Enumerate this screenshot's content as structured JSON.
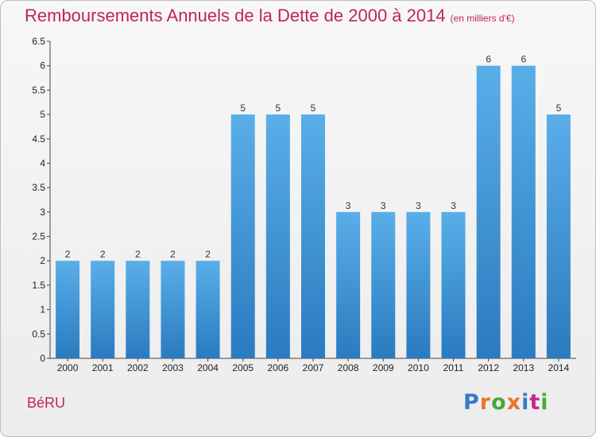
{
  "header": {
    "title": "Remboursements Annuels de la Dette de 2000 à 2014",
    "unit": "(en milliers d'€)"
  },
  "footer": {
    "commune": "BéRU",
    "logo_text": "Proxiti"
  },
  "colors": {
    "title": "#c0245c",
    "bar_top": "#5aaee8",
    "bar_bottom": "#2a7bbf",
    "logo": [
      "#3a78c8",
      "#e8762a",
      "#4aa83a",
      "#e8762a",
      "#3a78c8",
      "#c02a8a",
      "#4aa83a"
    ]
  },
  "chart_data": {
    "type": "bar",
    "title": "Remboursements Annuels de la Dette de 2000 à 2014",
    "subtitle": "(en milliers d'€)",
    "categories": [
      "2000",
      "2001",
      "2002",
      "2003",
      "2004",
      "2005",
      "2006",
      "2007",
      "2008",
      "2009",
      "2010",
      "2011",
      "2012",
      "2013",
      "2014"
    ],
    "values": [
      2,
      2,
      2,
      2,
      2,
      5,
      5,
      5,
      3,
      3,
      3,
      3,
      6,
      6,
      5
    ],
    "ylim": [
      0,
      6.5
    ],
    "yticks": [
      "0",
      "0.5",
      "1",
      "1.5",
      "2",
      "2.5",
      "3",
      "3.5",
      "4",
      "4.5",
      "5",
      "5.5",
      "6",
      "6.5"
    ],
    "grid": false,
    "xlabel": "",
    "ylabel": ""
  }
}
